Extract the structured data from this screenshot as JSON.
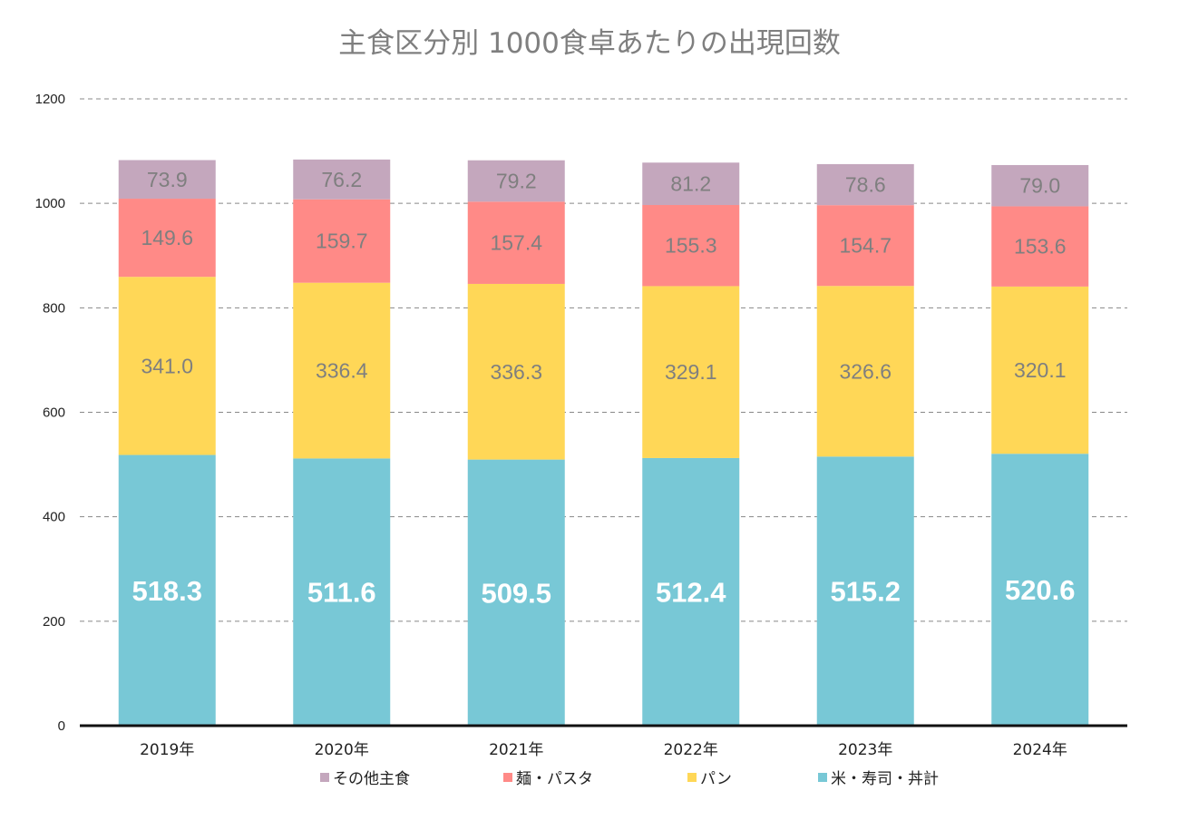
{
  "chart_data": {
    "type": "bar",
    "stacked": true,
    "title": "主食区分別 1000食卓あたりの出現回数",
    "xlabel": "",
    "ylabel": "",
    "categories": [
      "2019年",
      "2020年",
      "2021年",
      "2022年",
      "2023年",
      "2024年"
    ],
    "ylim": [
      0,
      1200
    ],
    "yticks": [
      0,
      200,
      400,
      600,
      800,
      1000,
      1200
    ],
    "grid": true,
    "legend_position": "bottom",
    "series": [
      {
        "name": "米・寿司・丼計",
        "color": "#78c8d6",
        "label_color": "#ffffff",
        "values": [
          518.3,
          511.6,
          509.5,
          512.4,
          515.2,
          520.6
        ]
      },
      {
        "name": "パン",
        "color": "#ffd757",
        "label_color": "#7f7f7f",
        "values": [
          341.0,
          336.4,
          336.3,
          329.1,
          326.6,
          320.1
        ]
      },
      {
        "name": "麺・パスタ",
        "color": "#ff8a87",
        "label_color": "#7f7f7f",
        "values": [
          149.6,
          159.7,
          157.4,
          155.3,
          154.7,
          153.6
        ]
      },
      {
        "name": "その他主食",
        "color": "#c4a7bd",
        "label_color": "#7f7f7f",
        "values": [
          73.9,
          76.2,
          79.2,
          81.2,
          78.6,
          79.0
        ]
      }
    ],
    "legend_order": [
      "その他主食",
      "麺・パスタ",
      "パン",
      "米・寿司・丼計"
    ]
  }
}
